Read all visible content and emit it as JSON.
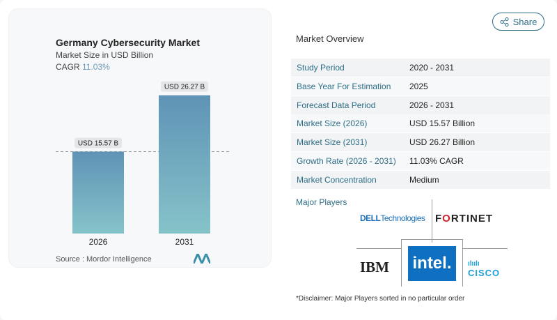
{
  "chart_data": {
    "type": "bar",
    "title": "Germany Cybersecurity Market",
    "subtitle": "Market Size in USD Billion",
    "cagr_label": "CAGR",
    "cagr_value": "11.03%",
    "categories": [
      "2026",
      "2031"
    ],
    "values": [
      15.57,
      26.27
    ],
    "data_labels": [
      "USD 15.57 B",
      "USD 26.27 B"
    ],
    "bar_color_top": "#5f93b6",
    "bar_color_bottom": "#86c3c9",
    "source": "Source :  Mordor Intelligence"
  },
  "share_label": "Share",
  "overview": {
    "title": "Market Overview",
    "rows": [
      {
        "k": "Study Period",
        "v": "2020 - 2031"
      },
      {
        "k": "Base Year For Estimation",
        "v": "2025"
      },
      {
        "k": "Forecast Data Period",
        "v": "2026 - 2031"
      },
      {
        "k": "Market Size (2026)",
        "v": "USD 15.57 Billion"
      },
      {
        "k": "Market Size (2031)",
        "v": "USD 26.27 Billion"
      },
      {
        "k": "Growth Rate (2026 - 2031)",
        "v": "11.03% CAGR"
      },
      {
        "k": "Market Concentration",
        "v": "Medium"
      }
    ],
    "major_players_label": "Major Players",
    "players": [
      "DELL Technologies",
      "FORTINET",
      "IBM",
      "intel",
      "CISCO"
    ],
    "disclaimer": "*Disclaimer: Major Players sorted in no particular order"
  }
}
